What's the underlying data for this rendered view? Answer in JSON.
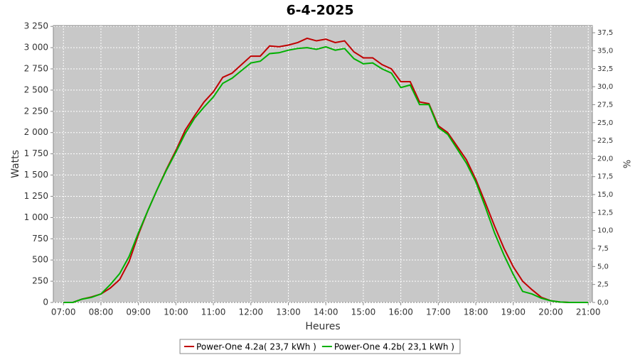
{
  "chart_data": {
    "type": "line",
    "title": "6-4-2025",
    "x_label": "Heures",
    "y_label": "Watts",
    "y2_label": "%",
    "x": [
      7,
      7.25,
      7.5,
      7.75,
      8,
      8.25,
      8.5,
      8.75,
      9,
      9.25,
      9.5,
      9.75,
      10,
      10.25,
      10.5,
      10.75,
      11,
      11.25,
      11.5,
      11.75,
      12,
      12.25,
      12.5,
      12.75,
      13,
      13.25,
      13.5,
      13.75,
      14,
      14.25,
      14.5,
      14.75,
      15,
      15.25,
      15.5,
      15.75,
      16,
      16.25,
      16.5,
      16.75,
      17,
      17.25,
      17.5,
      17.75,
      18,
      18.25,
      18.5,
      18.75,
      19,
      19.25,
      19.5,
      19.75,
      20,
      20.25,
      20.5,
      20.75,
      21
    ],
    "series": [
      {
        "name": "Power-One 4.2a( 23,7 kWh )",
        "color": "#c00000",
        "values": [
          0,
          0,
          40,
          65,
          100,
          170,
          270,
          480,
          800,
          1080,
          1330,
          1570,
          1790,
          2030,
          2200,
          2360,
          2480,
          2650,
          2700,
          2800,
          2900,
          2900,
          3020,
          3010,
          3030,
          3060,
          3110,
          3080,
          3100,
          3060,
          3080,
          2950,
          2880,
          2880,
          2800,
          2750,
          2600,
          2600,
          2360,
          2340,
          2080,
          2000,
          1840,
          1680,
          1450,
          1180,
          900,
          640,
          420,
          250,
          150,
          60,
          20,
          5,
          0,
          0,
          0
        ]
      },
      {
        "name": "Power-One 4.2b( 23,1 kWh )",
        "color": "#00b000",
        "values": [
          0,
          0,
          40,
          60,
          100,
          210,
          340,
          540,
          820,
          1080,
          1330,
          1560,
          1770,
          1990,
          2170,
          2300,
          2420,
          2580,
          2640,
          2730,
          2820,
          2840,
          2930,
          2940,
          2970,
          2990,
          3000,
          2980,
          3010,
          2970,
          2990,
          2870,
          2810,
          2820,
          2750,
          2700,
          2530,
          2560,
          2330,
          2330,
          2060,
          1980,
          1810,
          1640,
          1420,
          1130,
          820,
          560,
          330,
          130,
          100,
          50,
          20,
          5,
          0,
          0,
          0
        ]
      }
    ],
    "xlim": [
      6.73,
      21.11
    ],
    "xticks": [
      {
        "value": 7,
        "label": "07:00"
      },
      {
        "value": 8,
        "label": "08:00"
      },
      {
        "value": 9,
        "label": "09:00"
      },
      {
        "value": 10,
        "label": "10:00"
      },
      {
        "value": 11,
        "label": "11:00"
      },
      {
        "value": 12,
        "label": "12:00"
      },
      {
        "value": 13,
        "label": "13:00"
      },
      {
        "value": 14,
        "label": "14:00"
      },
      {
        "value": 15,
        "label": "15:00"
      },
      {
        "value": 16,
        "label": "16:00"
      },
      {
        "value": 17,
        "label": "17:00"
      },
      {
        "value": 18,
        "label": "18:00"
      },
      {
        "value": 19,
        "label": "19:00"
      },
      {
        "value": 20,
        "label": "20:00"
      },
      {
        "value": 21,
        "label": "21:00"
      }
    ],
    "ylim": [
      0,
      3260
    ],
    "yticks": [
      0,
      250,
      500,
      750,
      {
        "value": 1000,
        "label": "1 000"
      },
      {
        "value": 1250,
        "label": "1 250"
      },
      {
        "value": 1500,
        "label": "1 500"
      },
      {
        "value": 1750,
        "label": "1 750"
      },
      {
        "value": 2000,
        "label": "2 000"
      },
      {
        "value": 2250,
        "label": "2 250"
      },
      {
        "value": 2500,
        "label": "2 500"
      },
      {
        "value": 2750,
        "label": "2 750"
      },
      {
        "value": 3000,
        "label": "3 000"
      },
      {
        "value": 3250,
        "label": "3 250"
      }
    ],
    "y2lim": [
      0,
      38.5
    ],
    "y2ticks": [
      {
        "value": 0,
        "label": "0,0"
      },
      {
        "value": 2.5,
        "label": "2,5"
      },
      {
        "value": 5,
        "label": "5,0"
      },
      {
        "value": 7.5,
        "label": "7,5"
      },
      {
        "value": 10,
        "label": "10,0"
      },
      {
        "value": 12.5,
        "label": "12,5"
      },
      {
        "value": 15,
        "label": "15,0"
      },
      {
        "value": 17.5,
        "label": "17,5"
      },
      {
        "value": 20,
        "label": "20,0"
      },
      {
        "value": 22.5,
        "label": "22,5"
      },
      {
        "value": 25,
        "label": "25,0"
      },
      {
        "value": 27.5,
        "label": "27,5"
      },
      {
        "value": 30,
        "label": "30,0"
      },
      {
        "value": 32.5,
        "label": "32,5"
      },
      {
        "value": 35,
        "label": "35,0"
      },
      {
        "value": 37.5,
        "label": "37,5"
      }
    ],
    "grid": true,
    "background": "#c8c8c8",
    "legend": "bottom"
  }
}
